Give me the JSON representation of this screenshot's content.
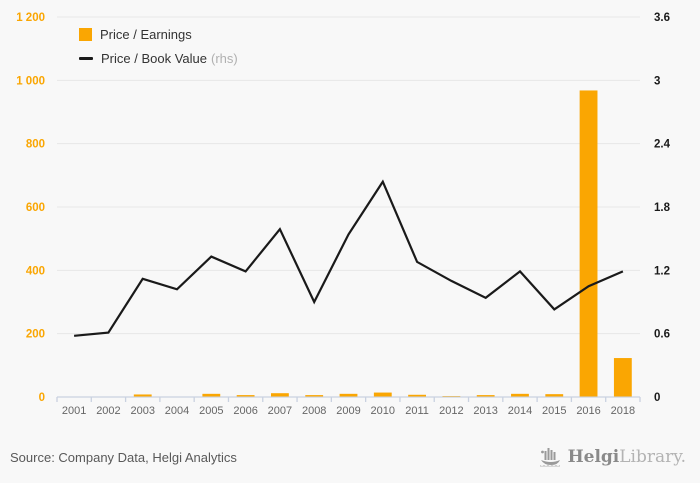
{
  "colors": {
    "background": "#f8f8f8",
    "bar": "#faa602",
    "line": "#1a1a1a",
    "grid": "#e7e7e7",
    "axis": "#c9d1e0",
    "left_tick_label": "#faa602",
    "right_tick_label": "#1a1a1a",
    "x_tick_label": "#666666",
    "legend_text": "#333333",
    "legend_suffix": "#b0b0b0",
    "source_text": "#595959",
    "logo_gray": "#8a8a8a",
    "logo_light_gray": "#b3b3b3"
  },
  "legend": {
    "items": [
      {
        "label": "Price / Earnings",
        "suffix": "",
        "swatch": "bar-swatch"
      },
      {
        "label": "Price / Book Value",
        "suffix": "(rhs)",
        "swatch": "line-swatch"
      }
    ]
  },
  "chart_data": {
    "type": "combo-bar-line",
    "categories": [
      "2001",
      "2002",
      "2003",
      "2004",
      "2005",
      "2006",
      "2007",
      "2008",
      "2009",
      "2010",
      "2011",
      "2012",
      "2013",
      "2014",
      "2015",
      "2016",
      "2018"
    ],
    "series": [
      {
        "name": "Price / Earnings",
        "type": "bar",
        "axis": "left",
        "values": [
          0,
          0,
          8,
          0,
          10,
          6,
          12,
          6,
          10,
          14,
          7,
          3,
          6,
          10,
          9,
          968,
          123
        ]
      },
      {
        "name": "Price / Book Value",
        "type": "line",
        "axis": "right",
        "values": [
          0.58,
          0.61,
          1.12,
          1.02,
          1.33,
          1.19,
          1.59,
          0.9,
          1.54,
          2.04,
          1.28,
          1.1,
          0.94,
          1.19,
          0.83,
          1.05,
          1.19
        ]
      }
    ],
    "left_axis": {
      "min": 0,
      "max": 1200,
      "tick_labels": [
        "0",
        "200",
        "400",
        "600",
        "800",
        "1 000",
        "1 200"
      ]
    },
    "right_axis": {
      "min": 0,
      "max": 3.6,
      "tick_labels": [
        "0",
        "0.6",
        "1.2",
        "1.8",
        "2.4",
        "3",
        "3.6"
      ]
    },
    "grid": true,
    "legend_position": "top-left",
    "title": ""
  },
  "footer": {
    "source": "Source: Company Data, Helgi Analytics",
    "logo_bold": "Helgi",
    "logo_light": "Library."
  }
}
